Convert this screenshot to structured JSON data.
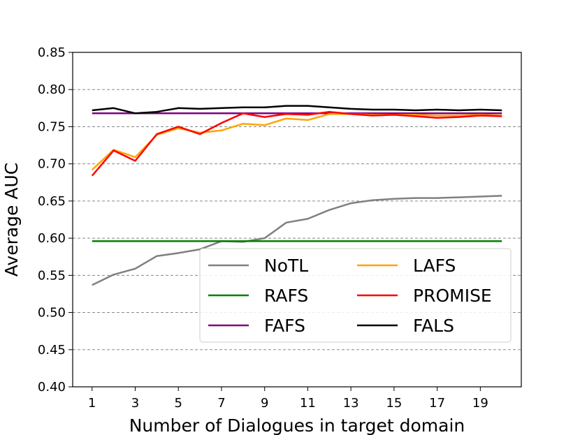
{
  "chart_data": {
    "type": "line",
    "xlabel": "Number of Dialogues in target domain",
    "ylabel": "Average AUC",
    "xlim": [
      0.1,
      20.9
    ],
    "ylim": [
      0.4,
      0.85
    ],
    "xticks": [
      1,
      3,
      5,
      7,
      9,
      11,
      13,
      15,
      17,
      19
    ],
    "yticks": [
      0.4,
      0.45,
      0.5,
      0.55,
      0.6,
      0.65,
      0.7,
      0.75,
      0.8,
      0.85
    ],
    "ytick_labels": [
      "0.40",
      "0.45",
      "0.50",
      "0.55",
      "0.60",
      "0.65",
      "0.70",
      "0.75",
      "0.80",
      "0.85"
    ],
    "grid": "horizontal dashed",
    "legend_position": "lower-right",
    "x": [
      1,
      2,
      3,
      4,
      5,
      6,
      7,
      8,
      9,
      10,
      11,
      12,
      13,
      14,
      15,
      16,
      17,
      18,
      19,
      20
    ],
    "series": [
      {
        "name": "NoTL",
        "color": "#808080",
        "values": [
          0.537,
          0.551,
          0.559,
          0.576,
          0.58,
          0.585,
          0.596,
          0.595,
          0.6,
          0.621,
          0.626,
          0.638,
          0.647,
          0.651,
          0.653,
          0.654,
          0.654,
          0.655,
          0.656,
          0.657
        ]
      },
      {
        "name": "RAFS",
        "color": "#008000",
        "values": [
          0.596,
          0.596,
          0.596,
          0.596,
          0.596,
          0.596,
          0.596,
          0.596,
          0.596,
          0.596,
          0.596,
          0.596,
          0.596,
          0.596,
          0.596,
          0.596,
          0.596,
          0.596,
          0.596,
          0.596
        ]
      },
      {
        "name": "FAFS",
        "color": "#800080",
        "values": [
          0.768,
          0.768,
          0.768,
          0.768,
          0.768,
          0.768,
          0.768,
          0.768,
          0.768,
          0.768,
          0.768,
          0.768,
          0.768,
          0.768,
          0.768,
          0.768,
          0.768,
          0.768,
          0.768,
          0.768
        ]
      },
      {
        "name": "LAFS",
        "color": "#FFA500",
        "values": [
          0.692,
          0.719,
          0.709,
          0.739,
          0.748,
          0.742,
          0.745,
          0.754,
          0.752,
          0.761,
          0.759,
          0.767,
          0.767,
          0.766,
          0.766,
          0.766,
          0.765,
          0.765,
          0.766,
          0.765
        ]
      },
      {
        "name": "PROMISE",
        "color": "#FF0000",
        "values": [
          0.684,
          0.718,
          0.704,
          0.74,
          0.75,
          0.74,
          0.755,
          0.768,
          0.763,
          0.767,
          0.766,
          0.77,
          0.767,
          0.765,
          0.766,
          0.764,
          0.762,
          0.763,
          0.765,
          0.764
        ]
      },
      {
        "name": "FALS",
        "color": "#000000",
        "values": [
          0.772,
          0.775,
          0.768,
          0.77,
          0.775,
          0.774,
          0.775,
          0.776,
          0.776,
          0.778,
          0.778,
          0.776,
          0.774,
          0.773,
          0.773,
          0.772,
          0.773,
          0.772,
          0.773,
          0.772
        ]
      }
    ],
    "legend_order": [
      "NoTL",
      "LAFS",
      "RAFS",
      "PROMISE",
      "FAFS",
      "FALS"
    ]
  }
}
